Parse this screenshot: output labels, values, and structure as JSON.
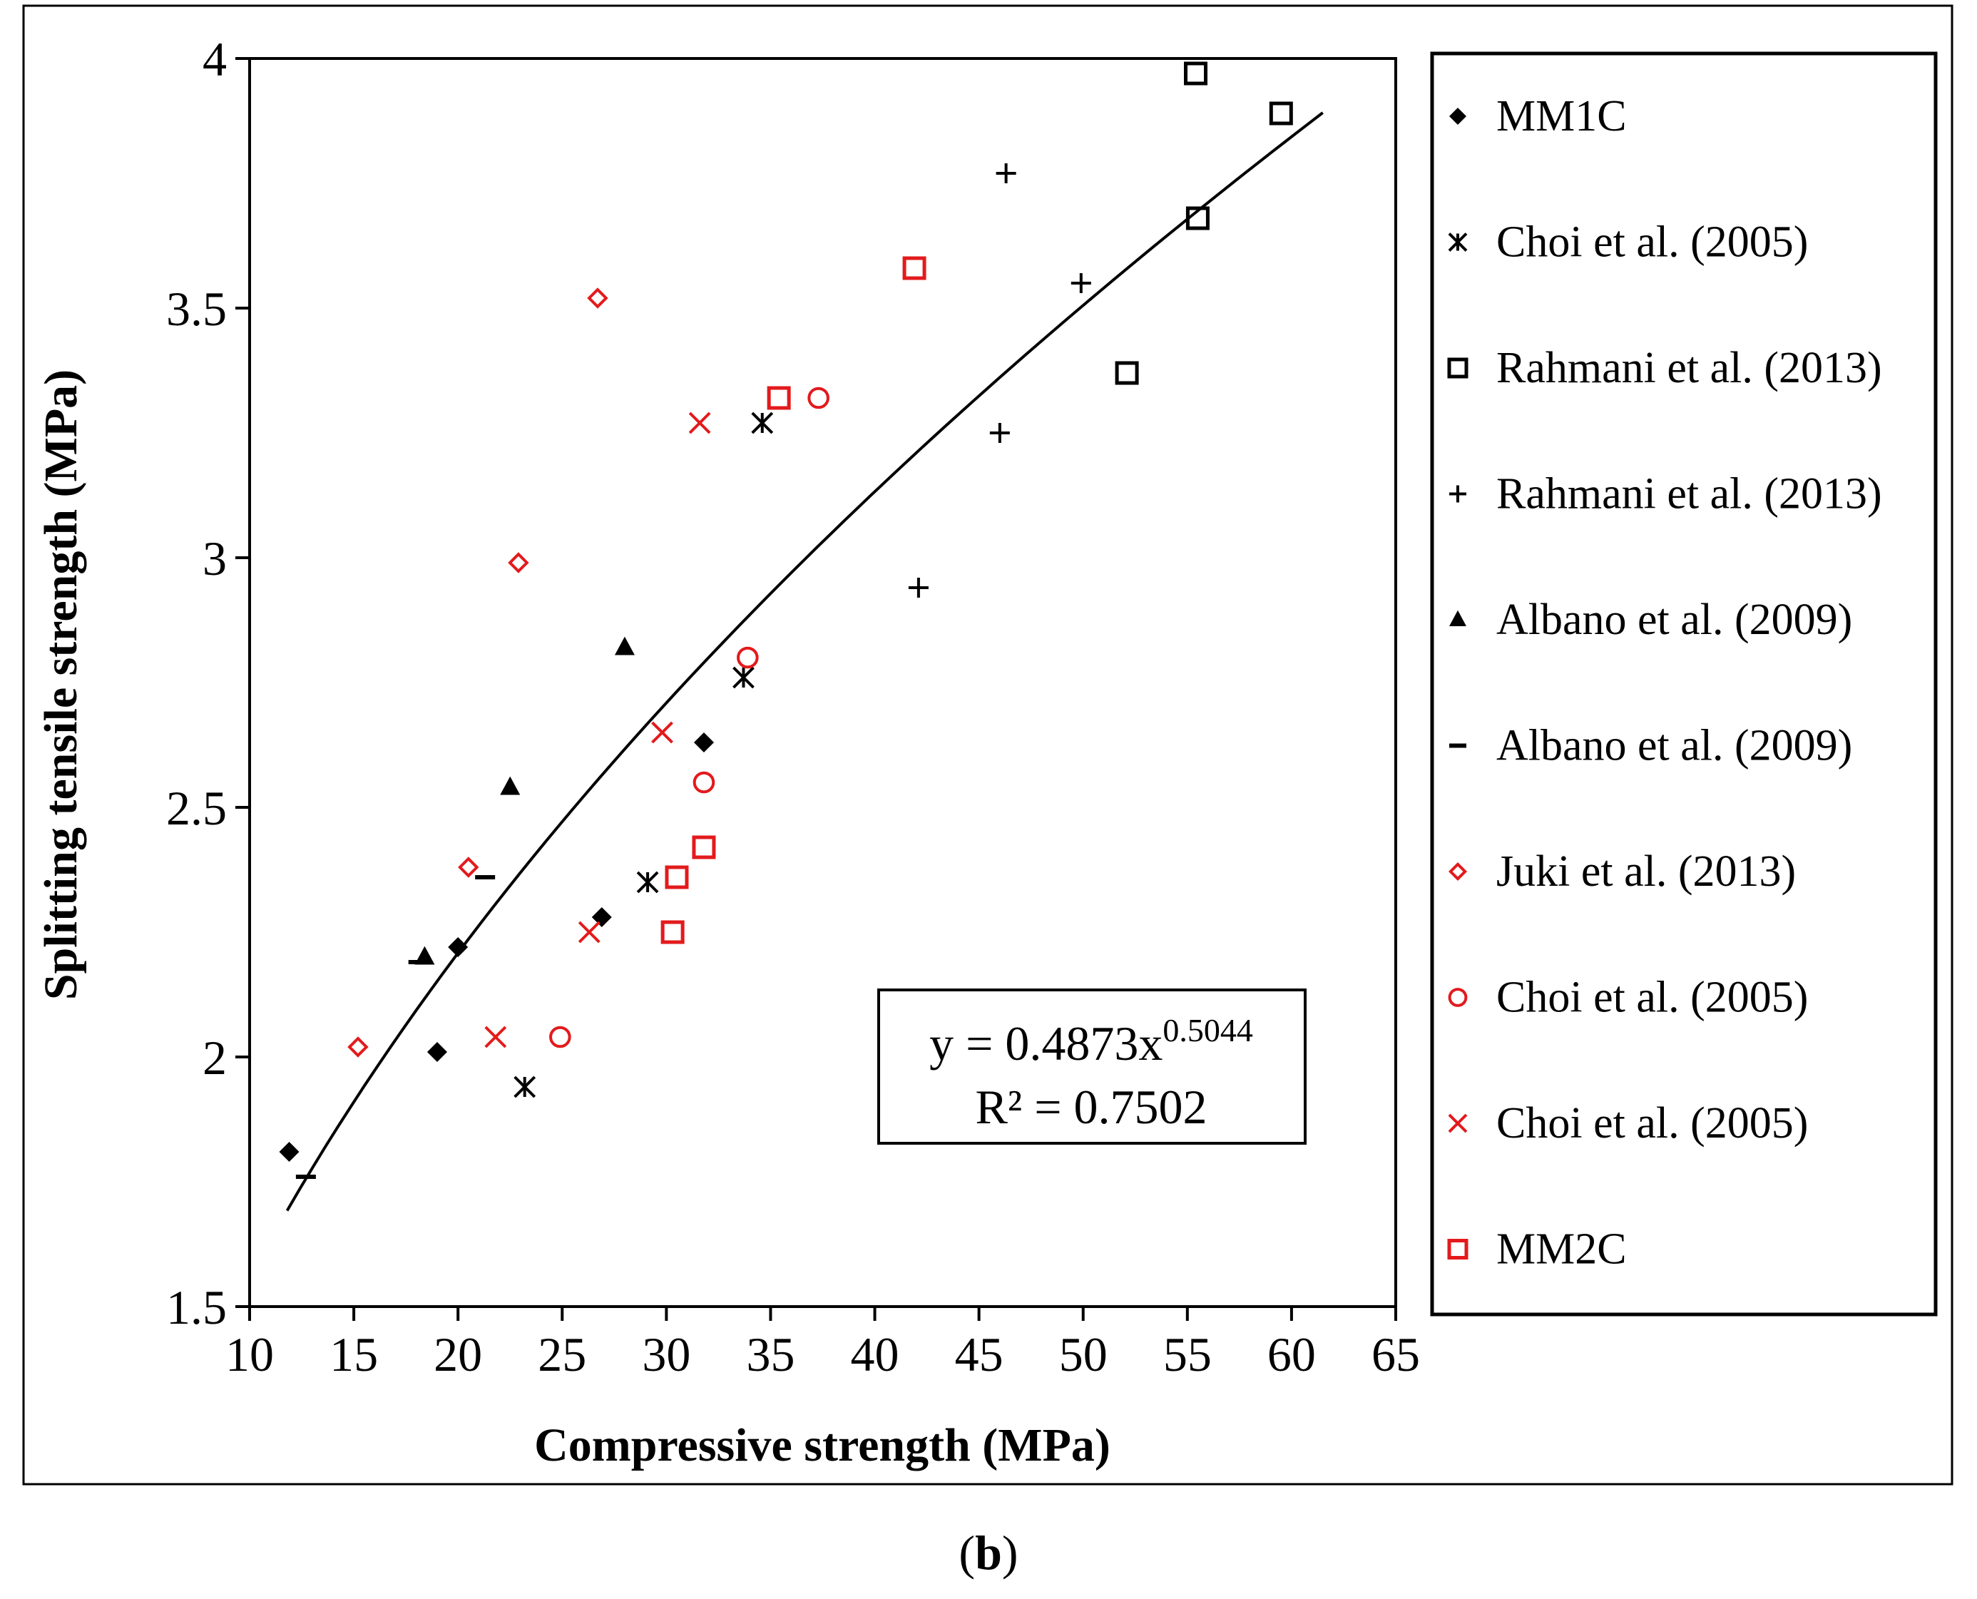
{
  "chart_data": {
    "type": "scatter",
    "title": "",
    "xlabel": "Compressive strength (MPa)",
    "ylabel": "Splitting tensile strength (MPa)",
    "xlim": [
      10,
      65
    ],
    "ylim": [
      1.5,
      4
    ],
    "xticks": [
      "10",
      "15",
      "20",
      "25",
      "30",
      "35",
      "40",
      "45",
      "50",
      "55",
      "60",
      "65"
    ],
    "yticks": [
      "1.5",
      "2",
      "2.5",
      "3",
      "3.5",
      "4"
    ],
    "grid": false,
    "legend_position": "right",
    "series": [
      {
        "name": "MM1C",
        "marker": "diamond-filled",
        "color": "#000000",
        "points": [
          [
            11.9,
            1.81
          ],
          [
            19.0,
            2.01
          ],
          [
            20.0,
            2.22
          ],
          [
            26.9,
            2.28
          ],
          [
            31.8,
            2.63
          ]
        ]
      },
      {
        "name": "Choi et al. (2005)",
        "marker": "asterisk",
        "color": "#000000",
        "points": [
          [
            23.2,
            1.94
          ],
          [
            29.1,
            2.35
          ],
          [
            33.7,
            2.76
          ],
          [
            34.6,
            3.27
          ]
        ]
      },
      {
        "name": "Rahmani et al. (2013)",
        "marker": "square-open",
        "color": "#000000",
        "points": [
          [
            52.1,
            3.37
          ],
          [
            55.4,
            3.97
          ],
          [
            55.5,
            3.68
          ],
          [
            59.5,
            3.89
          ]
        ]
      },
      {
        "name": "Rahmani et al. (2013)",
        "marker": "plus",
        "color": "#000000",
        "points": [
          [
            42.1,
            2.94
          ],
          [
            46.0,
            3.25
          ],
          [
            46.3,
            3.77
          ],
          [
            49.9,
            3.55
          ]
        ]
      },
      {
        "name": "Albano et al. (2009)",
        "marker": "triangle-filled",
        "color": "#000000",
        "points": [
          [
            18.4,
            2.2
          ],
          [
            22.5,
            2.54
          ],
          [
            28.0,
            2.82
          ]
        ]
      },
      {
        "name": "Albano et al. (2009)",
        "marker": "dash",
        "color": "#000000",
        "points": [
          [
            12.7,
            1.76
          ],
          [
            18.1,
            2.19
          ],
          [
            21.3,
            2.36
          ]
        ]
      },
      {
        "name": "Juki et al. (2013)",
        "marker": "diamond-open",
        "color": "#e31a1c",
        "points": [
          [
            15.2,
            2.02
          ],
          [
            20.5,
            2.38
          ],
          [
            22.9,
            2.99
          ],
          [
            26.7,
            3.52
          ]
        ]
      },
      {
        "name": "Choi et al. (2005)",
        "marker": "circle-open",
        "color": "#e31a1c",
        "points": [
          [
            24.9,
            2.04
          ],
          [
            31.8,
            2.55
          ],
          [
            33.9,
            2.8
          ],
          [
            37.3,
            3.32
          ]
        ]
      },
      {
        "name": "Choi et al. (2005)",
        "marker": "x",
        "color": "#e31a1c",
        "points": [
          [
            21.8,
            2.04
          ],
          [
            26.3,
            2.25
          ],
          [
            29.8,
            2.65
          ],
          [
            31.6,
            3.27
          ]
        ]
      },
      {
        "name": "MM2C",
        "marker": "square-open",
        "color": "#e31a1c",
        "points": [
          [
            30.3,
            2.25
          ],
          [
            30.5,
            2.36
          ],
          [
            31.8,
            2.42
          ],
          [
            35.4,
            3.32
          ],
          [
            41.9,
            3.58
          ]
        ]
      }
    ],
    "trendline": {
      "type": "power",
      "a": 0.4873,
      "b": 0.5044,
      "x_range": [
        11.8,
        61.5
      ],
      "equation_text": "y = 0.4873x",
      "exponent_text": "0.5044",
      "r2_text": "R² = 0.7502"
    }
  },
  "caption": {
    "open": "(",
    "letter": "b",
    "close": ")"
  }
}
